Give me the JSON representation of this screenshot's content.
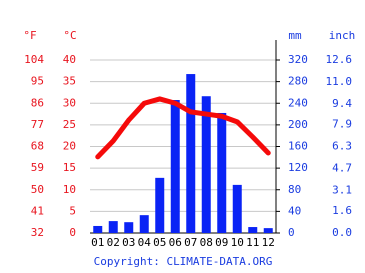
{
  "chart_data": {
    "type": "combo",
    "y_label": "°C",
    "y3_label": "°F",
    "y2_label": "mm",
    "y4_label": "inch",
    "footer": "Copyright: CLIMATE-DATA.ORG",
    "categories": [
      "01",
      "02",
      "03",
      "04",
      "05",
      "06",
      "07",
      "08",
      "09",
      "10",
      "11",
      "12"
    ],
    "series": [
      {
        "type": "bar",
        "axis": "y2",
        "color": "#0a23f5",
        "values": [
          13,
          22,
          20,
          33,
          102,
          246,
          294,
          253,
          222,
          89,
          11,
          9
        ]
      },
      {
        "type": "line",
        "color": "#f50a0a",
        "values": [
          17.6,
          21.3,
          26.1,
          30,
          31,
          30,
          28,
          27.5,
          27,
          25.7,
          22.2,
          18.5
        ]
      }
    ],
    "ylim": [
      0,
      40
    ],
    "yticks": [
      0,
      5,
      10,
      15,
      20,
      25,
      30,
      35,
      40
    ],
    "y3lim": [
      32,
      104
    ],
    "y3ticks": [
      32,
      41,
      50,
      59,
      68,
      77,
      86,
      95,
      104
    ],
    "y2lim": [
      0,
      320
    ],
    "y2ticks": [
      0,
      40,
      80,
      120,
      160,
      200,
      240,
      280,
      320
    ],
    "y4lim": [
      0,
      12.6
    ],
    "y4ticks": [
      {
        "value": 0,
        "label": "0.0"
      },
      1.6,
      3.1,
      4.7,
      6.3,
      7.9,
      9.4,
      {
        "value": 11,
        "label": "11.0"
      },
      12.6
    ],
    "grid": true
  }
}
